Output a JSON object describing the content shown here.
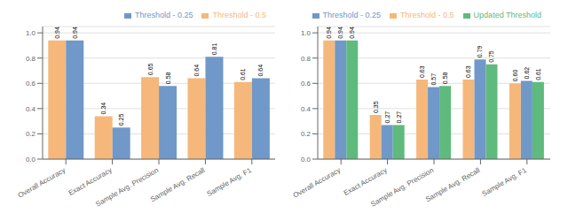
{
  "chart_data": [
    {
      "type": "bar",
      "categories": [
        "Overall Accuracy",
        "Exact Accuracy",
        "Sample Avg. Precision",
        "Sample Avg. Recall",
        "Sample Avg. F1"
      ],
      "series": [
        {
          "name": "Threshold - 0.5",
          "color": "#f5b87a",
          "values": [
            0.94,
            0.34,
            0.65,
            0.64,
            0.61
          ],
          "value_labels": [
            "0.94",
            "0.34",
            "0.65",
            "0.64",
            "0.61"
          ]
        },
        {
          "name": "Threshold - 0.25",
          "color": "#7098c8",
          "values": [
            0.94,
            0.25,
            0.58,
            0.81,
            0.64
          ],
          "value_labels": [
            "0.94",
            "0.25",
            "0.58",
            "0.81",
            "0.64"
          ]
        }
      ],
      "ylim": [
        0.0,
        1.05
      ],
      "yticks": [
        {
          "value": 0,
          "label": "0.0"
        },
        0.2,
        0.4,
        0.6,
        0.8,
        {
          "value": 1,
          "label": "1.0"
        }
      ],
      "grid": true,
      "legend": "upper right",
      "data_labels": true
    },
    {
      "type": "bar",
      "categories": [
        "Overall Accuracy",
        "Exact Accuracy",
        "Sample Avg. Precision",
        "Sample Avg. Recall",
        "Sample Avg. F1"
      ],
      "series": [
        {
          "name": "Threshold - 0.5",
          "color": "#f5b87a",
          "values": [
            0.94,
            0.35,
            0.63,
            0.63,
            0.6
          ],
          "value_labels": [
            "0.94",
            "0.35",
            "0.63",
            "0.63",
            "0.60"
          ]
        },
        {
          "name": "Threshold - 0.25",
          "color": "#7098c8",
          "values": [
            0.94,
            0.27,
            0.57,
            0.79,
            0.62
          ],
          "value_labels": [
            "0.94",
            "0.27",
            "0.57",
            "0.79",
            "0.62"
          ]
        },
        {
          "name": "Updated Threshold",
          "color": "#5fba7d",
          "values": [
            0.94,
            0.27,
            0.58,
            0.75,
            0.61
          ],
          "value_labels": [
            "0.94",
            "0.27",
            "0.58",
            "0.75",
            "0.61"
          ]
        }
      ],
      "ylim": [
        0.0,
        1.05
      ],
      "yticks": [
        {
          "value": 0,
          "label": "0.0"
        },
        0.2,
        0.4,
        0.6,
        0.8,
        {
          "value": 1,
          "label": "1.0"
        }
      ],
      "grid": true,
      "legend": "upper right",
      "data_labels": true
    }
  ]
}
